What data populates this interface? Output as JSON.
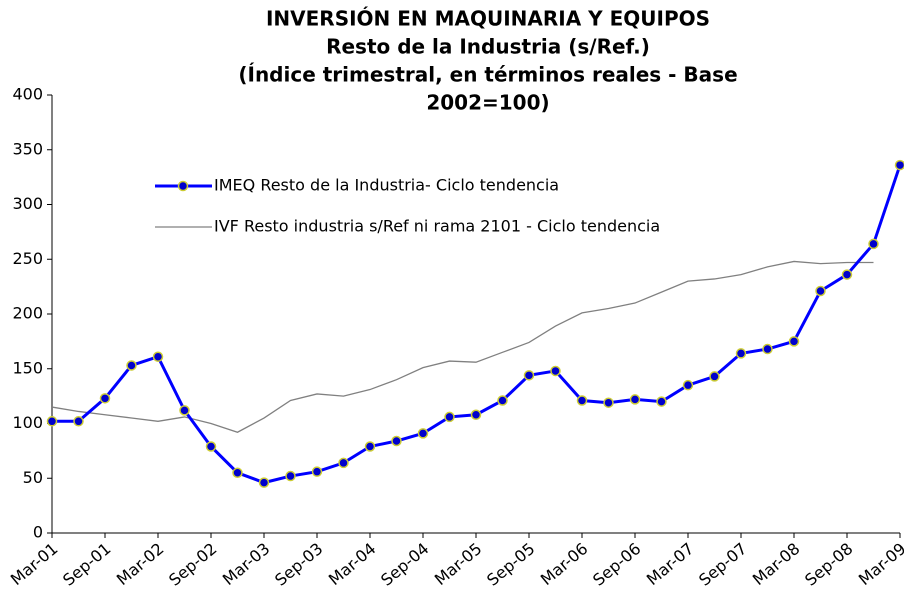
{
  "chart_data": {
    "type": "line",
    "title": [
      "INVERSIÓN EN MAQUINARIA Y EQUIPOS",
      "Resto de la Industria (s/Ref.)",
      "(Índice trimestral, en términos reales - Base",
      "2002=100)"
    ],
    "categories": [
      "Mar-01",
      null,
      "Sep-01",
      null,
      "Mar-02",
      null,
      "Sep-02",
      null,
      "Mar-03",
      null,
      "Sep-03",
      null,
      "Mar-04",
      null,
      "Sep-04",
      null,
      "Mar-05",
      null,
      "Sep-05",
      null,
      "Mar-06",
      null,
      "Sep-06",
      null,
      "Mar-07",
      null,
      "Sep-07",
      null,
      "Mar-08",
      null,
      "Sep-08",
      null,
      "Mar-09"
    ],
    "series": [
      {
        "name": "IMEQ Resto de la Industria- Ciclo tendencia",
        "color": "#0000ff",
        "marker_color": "#0000cc",
        "marker_edge": "#cccc33",
        "values": [
          102,
          102,
          123,
          153,
          161,
          112,
          79,
          55,
          46,
          52,
          56,
          64,
          79,
          84,
          91,
          106,
          108,
          121,
          144,
          148,
          121,
          119,
          122,
          120,
          135,
          143,
          164,
          168,
          175,
          221,
          236,
          264,
          336
        ]
      },
      {
        "name": "IVF Resto industria s/Ref ni rama 2101 - Ciclo tendencia",
        "color": "#808080",
        "values": [
          115,
          111,
          108,
          105,
          102,
          106,
          100,
          92,
          105,
          121,
          127,
          125,
          131,
          140,
          151,
          157,
          156,
          165,
          174,
          189,
          201,
          205,
          210,
          220,
          230,
          232,
          236,
          243,
          248,
          246,
          247,
          247,
          null
        ]
      }
    ],
    "ylim": [
      0,
      400
    ],
    "yticks": [
      0,
      50,
      100,
      150,
      200,
      250,
      300,
      350,
      400
    ],
    "grid": false
  }
}
